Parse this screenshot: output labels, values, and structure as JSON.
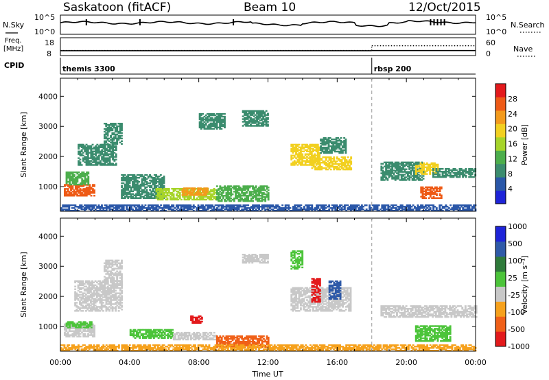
{
  "header": {
    "station": "Saskatoon (fitACF)",
    "beam": "Beam 10",
    "date": "12/Oct/2015"
  },
  "strip_labels": {
    "nsky": "N.Sky",
    "nsky_top": "10^5",
    "nsky_bottom": "10^0",
    "nsearch": "N.Search",
    "nsearch_top": "10^5",
    "nsearch_bottom": "10^0",
    "freq_line1": "Freq.",
    "freq_line2": "[MHz]",
    "freq_top": "18",
    "freq_bottom": "8",
    "nave": "Nave",
    "nave_top": "60",
    "nave_bottom": "0",
    "cpid": "CPID"
  },
  "cpid_segments": [
    {
      "label": "themis 3300",
      "start_hour": 0
    },
    {
      "label": "rbsp 200",
      "start_hour": 18
    }
  ],
  "colors": {
    "power": [
      "#1e24d8",
      "#2a57a8",
      "#3b8c6e",
      "#4cae4c",
      "#a6d42a",
      "#f2d020",
      "#f39a1c",
      "#ee5a16",
      "#e31a1c"
    ],
    "velocity": [
      "#e31a1c",
      "#f06018",
      "#f6a11c",
      "#c8c8c8",
      "#4cc43a",
      "#2e7a3a",
      "#2f5aa8",
      "#1e24d8"
    ],
    "dashed_line": "#999999"
  },
  "chart_data": [
    {
      "type": "line",
      "name": "noise-strip",
      "series": [
        {
          "name": "N.Sky",
          "style": "solid"
        },
        {
          "name": "N.Search",
          "style": "dotted"
        }
      ],
      "xlim": [
        0,
        24
      ]
    },
    {
      "type": "line",
      "name": "freq-nave-strip",
      "series": [
        {
          "name": "Freq.",
          "style": "solid",
          "segments": [
            {
              "x": [
                0,
                18
              ],
              "y": 10.7
            },
            {
              "x": [
                18,
                24
              ],
              "y": 10.8
            }
          ]
        },
        {
          "name": "Nave",
          "style": "dotted",
          "segments": [
            {
              "x": [
                0,
                18
              ],
              "y": 17
            },
            {
              "x": [
                18,
                24
              ],
              "y": 33
            }
          ]
        }
      ],
      "ylim_freq": [
        8,
        18
      ],
      "ylim_nave": [
        0,
        60
      ]
    },
    {
      "type": "heatmap",
      "name": "power",
      "xlabel": "",
      "ylabel": "Slant Range [km]",
      "xlim": [
        0,
        24
      ],
      "ylim": [
        180,
        4600
      ],
      "yticks": [
        1000,
        2000,
        3000,
        4000
      ],
      "colorbar": {
        "label": "Power [dB]",
        "range": [
          0,
          32
        ],
        "ticks": [
          4,
          8,
          12,
          16,
          20,
          24,
          28
        ]
      },
      "vertical_marker_hour": 18,
      "regions": [
        {
          "t0": 0.2,
          "t1": 2.0,
          "r0": 680,
          "r1": 1050,
          "v": 26
        },
        {
          "t0": 0.3,
          "t1": 1.6,
          "r0": 1050,
          "r1": 1500,
          "v": 11
        },
        {
          "t0": 1.0,
          "t1": 3.2,
          "r0": 1700,
          "r1": 2400,
          "v": 10
        },
        {
          "t0": 2.5,
          "t1": 3.5,
          "r0": 2400,
          "r1": 3100,
          "v": 9
        },
        {
          "t0": 3.5,
          "t1": 6.0,
          "r0": 600,
          "r1": 1400,
          "v": 8
        },
        {
          "t0": 5.5,
          "t1": 9.0,
          "r0": 550,
          "r1": 950,
          "v": 17
        },
        {
          "t0": 7.0,
          "t1": 8.5,
          "r0": 700,
          "r1": 950,
          "v": 24
        },
        {
          "t0": 9.0,
          "t1": 12.0,
          "r0": 500,
          "r1": 1000,
          "v": 12
        },
        {
          "t0": 8.0,
          "t1": 9.5,
          "r0": 2900,
          "r1": 3400,
          "v": 8
        },
        {
          "t0": 10.5,
          "t1": 12.0,
          "r0": 3000,
          "r1": 3500,
          "v": 10
        },
        {
          "t0": 13.3,
          "t1": 15.0,
          "r0": 1700,
          "r1": 2400,
          "v": 18
        },
        {
          "t0": 14.5,
          "t1": 16.8,
          "r0": 1550,
          "r1": 2000,
          "v": 19
        },
        {
          "t0": 15.0,
          "t1": 16.5,
          "r0": 2100,
          "r1": 2600,
          "v": 10
        },
        {
          "t0": 18.5,
          "t1": 21.0,
          "r0": 1200,
          "r1": 1800,
          "v": 10
        },
        {
          "t0": 20.5,
          "t1": 21.8,
          "r0": 1400,
          "r1": 1800,
          "v": 20
        },
        {
          "t0": 20.8,
          "t1": 22.0,
          "r0": 600,
          "r1": 1000,
          "v": 26
        },
        {
          "t0": 21.5,
          "t1": 24.0,
          "r0": 1300,
          "r1": 1600,
          "v": 9
        },
        {
          "t0": 0.0,
          "t1": 24.0,
          "r0": 180,
          "r1": 400,
          "v": 7
        }
      ]
    },
    {
      "type": "heatmap",
      "name": "velocity",
      "xlabel": "Time UT",
      "ylabel": "Slant Range [km]",
      "xlim": [
        0,
        24
      ],
      "ylim": [
        180,
        4600
      ],
      "xticks": [
        "00:00",
        "04:00",
        "08:00",
        "12:00",
        "16:00",
        "20:00",
        "00:00"
      ],
      "yticks": [
        1000,
        2000,
        3000,
        4000
      ],
      "colorbar": {
        "label": "Velocity [m s⁻¹]",
        "ticks": [
          "1000",
          "500",
          "100",
          "25",
          "-25",
          "-100",
          "-500",
          "-1000"
        ]
      },
      "vertical_marker_hour": 18,
      "regions": [
        {
          "t0": 0.2,
          "t1": 2.0,
          "r0": 650,
          "r1": 1100,
          "v": 0
        },
        {
          "t0": 0.3,
          "t1": 1.8,
          "r0": 950,
          "r1": 1150,
          "v": 60
        },
        {
          "t0": 0.8,
          "t1": 3.5,
          "r0": 1500,
          "r1": 2500,
          "v": 0
        },
        {
          "t0": 2.5,
          "t1": 3.5,
          "r0": 2500,
          "r1": 3200,
          "v": 0
        },
        {
          "t0": 4.0,
          "t1": 6.5,
          "r0": 600,
          "r1": 900,
          "v": 70
        },
        {
          "t0": 6.5,
          "t1": 9.0,
          "r0": 550,
          "r1": 800,
          "v": 0
        },
        {
          "t0": 7.5,
          "t1": 8.2,
          "r0": 1100,
          "r1": 1350,
          "v": -600
        },
        {
          "t0": 9.0,
          "t1": 12.0,
          "r0": 300,
          "r1": 700,
          "v": -120
        },
        {
          "t0": 10.5,
          "t1": 12.0,
          "r0": 3100,
          "r1": 3400,
          "v": 0
        },
        {
          "t0": 13.3,
          "t1": 16.8,
          "r0": 1500,
          "r1": 2300,
          "v": 0
        },
        {
          "t0": 13.3,
          "t1": 14.0,
          "r0": 2900,
          "r1": 3500,
          "v": 80
        },
        {
          "t0": 14.5,
          "t1": 15.0,
          "r0": 1800,
          "r1": 2600,
          "v": -500
        },
        {
          "t0": 15.5,
          "t1": 16.2,
          "r0": 1900,
          "r1": 2500,
          "v": 700
        },
        {
          "t0": 18.5,
          "t1": 24.0,
          "r0": 1300,
          "r1": 1700,
          "v": 0
        },
        {
          "t0": 20.5,
          "t1": 22.5,
          "r0": 500,
          "r1": 1000,
          "v": 80
        },
        {
          "t0": 0.0,
          "t1": 24.0,
          "r0": 180,
          "r1": 400,
          "v": -60
        }
      ]
    }
  ]
}
